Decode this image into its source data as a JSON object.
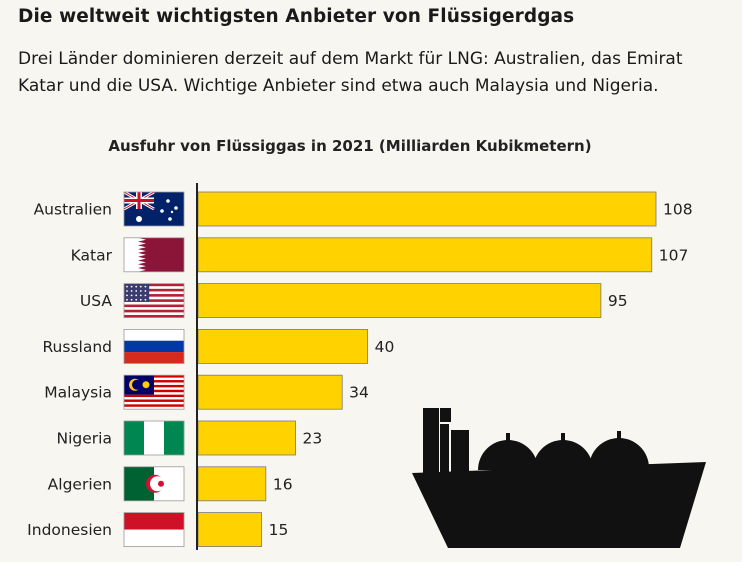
{
  "header": {
    "title": "Die weltweit wichtigsten Anbieter von Flüssigerdgas",
    "intro": "Drei Länder dominieren derzeit auf dem Markt für LNG: Australien, das Emirat Katar und die USA. Wichtige Anbieter sind etwa auch Malaysia und Nigeria."
  },
  "chart_data": {
    "type": "bar",
    "orientation": "horizontal",
    "title": "Ausfuhr von Flüssiggas in 2021 (Milliarden Kubikmetern)",
    "categories": [
      "Australien",
      "Katar",
      "USA",
      "Russland",
      "Malaysia",
      "Nigeria",
      "Algerien",
      "Indonesien"
    ],
    "values": [
      108,
      107,
      95,
      40,
      34,
      23,
      16,
      15
    ],
    "flags": [
      "australia-flag",
      "qatar-flag",
      "usa-flag",
      "russia-flag",
      "malaysia-flag",
      "nigeria-flag",
      "algeria-flag",
      "indonesia-flag"
    ],
    "bar_color": "#ffd200",
    "grid": false,
    "legend": "none",
    "icon": "lng-tanker-ship-icon"
  }
}
